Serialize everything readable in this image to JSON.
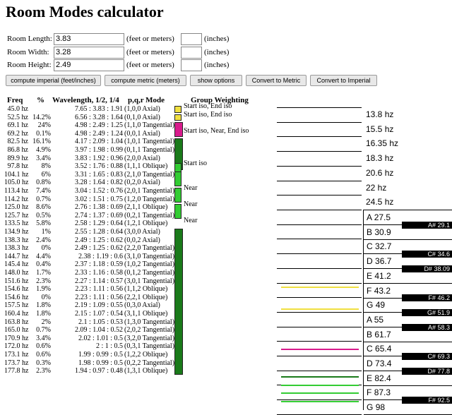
{
  "title": "Room Modes calculator",
  "inputs": [
    {
      "label": "Room Length:",
      "value": "3.83",
      "unit": "(feet or meters)",
      "inch_unit": "(inches)"
    },
    {
      "label": "Room Width:",
      "value": "3.28",
      "unit": "(feet or meters)",
      "inch_unit": "(inches)"
    },
    {
      "label": "Room Height:",
      "value": "2.49",
      "unit": "(feet or meters)",
      "inch_unit": "(inches)"
    }
  ],
  "buttons": {
    "imperial": "compute imperial (feet/inches)",
    "metric": "compute metric (meters)",
    "options": "show options",
    "to_metric": "Convert to Metric",
    "to_imperial": "Convert to Imperial"
  },
  "headers": {
    "freq": "Freq",
    "pct": "%",
    "wave": "Wavelength, 1/2, 1/4",
    "mode": "p,q,r Mode",
    "group": "Group Weighting"
  },
  "modes": [
    [
      "45.0 hz",
      "",
      "7.65 : 3.83 : 1.91",
      "(1,0,0 Axial)"
    ],
    [
      "52.5 hz",
      "14.2%",
      "6.56 : 3.28 : 1.64",
      "(0,1,0 Axial)"
    ],
    [
      "69.1 hz",
      "24%",
      "4.98 : 2.49 : 1.25",
      "(1,1,0 Tangential)"
    ],
    [
      "69.2 hz",
      "0.1%",
      "4.98 : 2.49 : 1.24",
      "(0,0,1 Axial)"
    ],
    [
      "82.5 hz",
      "16.1%",
      "4.17 : 2.09 : 1.04",
      "(1,0,1 Tangential)"
    ],
    [
      "86.8 hz",
      "4.9%",
      "3.97 : 1.98 : 0.99",
      "(0,1,1 Tangential)"
    ],
    [
      "89.9 hz",
      "3.4%",
      "3.83 : 1.92 : 0.96",
      "(2,0,0 Axial)"
    ],
    [
      "97.8 hz",
      "8%",
      "3.52 : 1.76 : 0.88",
      "(1,1,1 Oblique)"
    ],
    [
      "104.1 hz",
      "6%",
      "3.31 : 1.65 : 0.83",
      "(2,1,0 Tangential)"
    ],
    [
      "105.0 hz",
      "0.8%",
      "3.28 : 1.64 : 0.82",
      "(0,2,0 Axial)"
    ],
    [
      "113.4 hz",
      "7.4%",
      "3.04 : 1.52 : 0.76",
      "(2,0,1 Tangential)"
    ],
    [
      "114.2 hz",
      "0.7%",
      "3.02 : 1.51 : 0.75",
      "(1,2,0 Tangential)"
    ],
    [
      "125.0 hz",
      "8.6%",
      "2.76 : 1.38 : 0.69",
      "(2,1,1 Oblique)"
    ],
    [
      "125.7 hz",
      "0.5%",
      "2.74 : 1.37 : 0.69",
      "(0,2,1 Tangential)"
    ],
    [
      "133.5 hz",
      "5.8%",
      "2.58 : 1.29 : 0.64",
      "(1,2,1 Oblique)"
    ],
    [
      "134.9 hz",
      "1%",
      "2.55 : 1.28 : 0.64",
      "(3,0,0 Axial)"
    ],
    [
      "138.3 hz",
      "2.4%",
      "2.49 : 1.25 : 0.62",
      "(0,0,2 Axial)"
    ],
    [
      "138.3 hz",
      "0%",
      "2.49 : 1.25 : 0.62",
      "(2,2,0 Tangential)"
    ],
    [
      "144.7 hz",
      "4.4%",
      "2.38 : 1.19 : 0.6",
      "(3,1,0 Tangential)"
    ],
    [
      "145.4 hz",
      "0.4%",
      "2.37 : 1.18 : 0.59",
      "(1,0,2 Tangential)"
    ],
    [
      "148.0 hz",
      "1.7%",
      "2.33 : 1.16 : 0.58",
      "(0,1,2 Tangential)"
    ],
    [
      "151.6 hz",
      "2.3%",
      "2.27 : 1.14 : 0.57",
      "(3,0,1 Tangential)"
    ],
    [
      "154.6 hz",
      "1.9%",
      "2.23 : 1.11 : 0.56",
      "(1,1,2 Oblique)"
    ],
    [
      "154.6 hz",
      "0%",
      "2.23 : 1.11 : 0.56",
      "(2,2,1 Oblique)"
    ],
    [
      "157.5 hz",
      "1.8%",
      "2.19 : 1.09 : 0.55",
      "(0,3,0 Axial)"
    ],
    [
      "160.4 hz",
      "1.8%",
      "2.15 : 1.07 : 0.54",
      "(3,1,1 Oblique)"
    ],
    [
      "163.8 hz",
      "2%",
      "2.1 : 1.05 : 0.53",
      "(1,3,0 Tangential)"
    ],
    [
      "165.0 hz",
      "0.7%",
      "2.09 : 1.04 : 0.52",
      "(2,0,2 Tangential)"
    ],
    [
      "170.9 hz",
      "3.4%",
      "2.02 : 1.01 : 0.5",
      "(3,2,0 Tangential)"
    ],
    [
      "172.0 hz",
      "0.6%",
      "2 : 1 : 0.5",
      "(0,3,1 Tangential)"
    ],
    [
      "173.1 hz",
      "0.6%",
      "1.99 : 0.99 : 0.5",
      "(1,2,2 Oblique)"
    ],
    [
      "173.7 hz",
      "0.3%",
      "1.98 : 0.99 : 0.5",
      "(0,2,2 Tangential)"
    ],
    [
      "177.8 hz",
      "2.3%",
      "1.94 : 0.97 : 0.48",
      "(1,3,1 Oblique)"
    ]
  ],
  "groups": [
    {
      "color": "#f0e040",
      "note": "Start iso, End iso"
    },
    {
      "color": "#f0e040",
      "note": "Start iso, End iso"
    },
    {
      "color": "#d81b8c",
      "note": "Start iso, Near, End iso"
    },
    {
      "color": "#1a7a1a",
      "note": "Start iso"
    },
    {
      "color": "#33cc33",
      "note": ""
    },
    {
      "color": "#33cc33",
      "note": "Near"
    },
    {
      "color": "#33cc33",
      "note": "Near"
    },
    {
      "color": "#33cc33",
      "note": "Near"
    },
    {
      "color": "#1a7a1a",
      "note": ""
    }
  ],
  "axial_freqs": [
    "13.8 hz",
    "15.5 hz",
    "16.35 hz",
    "18.3 hz",
    "20.6 hz",
    "22 hz",
    "24.5 hz"
  ],
  "white_keys": [
    {
      "note": "A",
      "freq": "27.5"
    },
    {
      "note": "B",
      "freq": "30.9"
    },
    {
      "note": "C",
      "freq": "32.7"
    },
    {
      "note": "D",
      "freq": "36.7"
    },
    {
      "note": "E",
      "freq": "41.2"
    },
    {
      "note": "F",
      "freq": "43.2"
    },
    {
      "note": "G",
      "freq": "49"
    },
    {
      "note": "A",
      "freq": "55"
    },
    {
      "note": "B",
      "freq": "61.7"
    },
    {
      "note": "C",
      "freq": "65.4"
    },
    {
      "note": "D",
      "freq": "73.4"
    },
    {
      "note": "E",
      "freq": "82.4"
    },
    {
      "note": "F",
      "freq": "87.3"
    },
    {
      "note": "G",
      "freq": "98"
    }
  ],
  "black_keys": [
    {
      "note": "A#",
      "freq": "29.1"
    },
    {
      "note": "C#",
      "freq": "34.6"
    },
    {
      "note": "D#",
      "freq": "38.09"
    },
    {
      "note": "F#",
      "freq": "46.2"
    },
    {
      "note": "G#",
      "freq": "51.9"
    },
    {
      "note": "A#",
      "freq": "58.3"
    },
    {
      "note": "C#",
      "freq": "69.3"
    },
    {
      "note": "D#",
      "freq": "77.8"
    },
    {
      "note": "F#",
      "freq": "92.5"
    }
  ],
  "lane_colors": [
    "#f0e040",
    "#f0e040",
    "#d81b8c",
    "#1a7a1a",
    "#33cc33",
    "#33cc33",
    "#33cc33"
  ]
}
